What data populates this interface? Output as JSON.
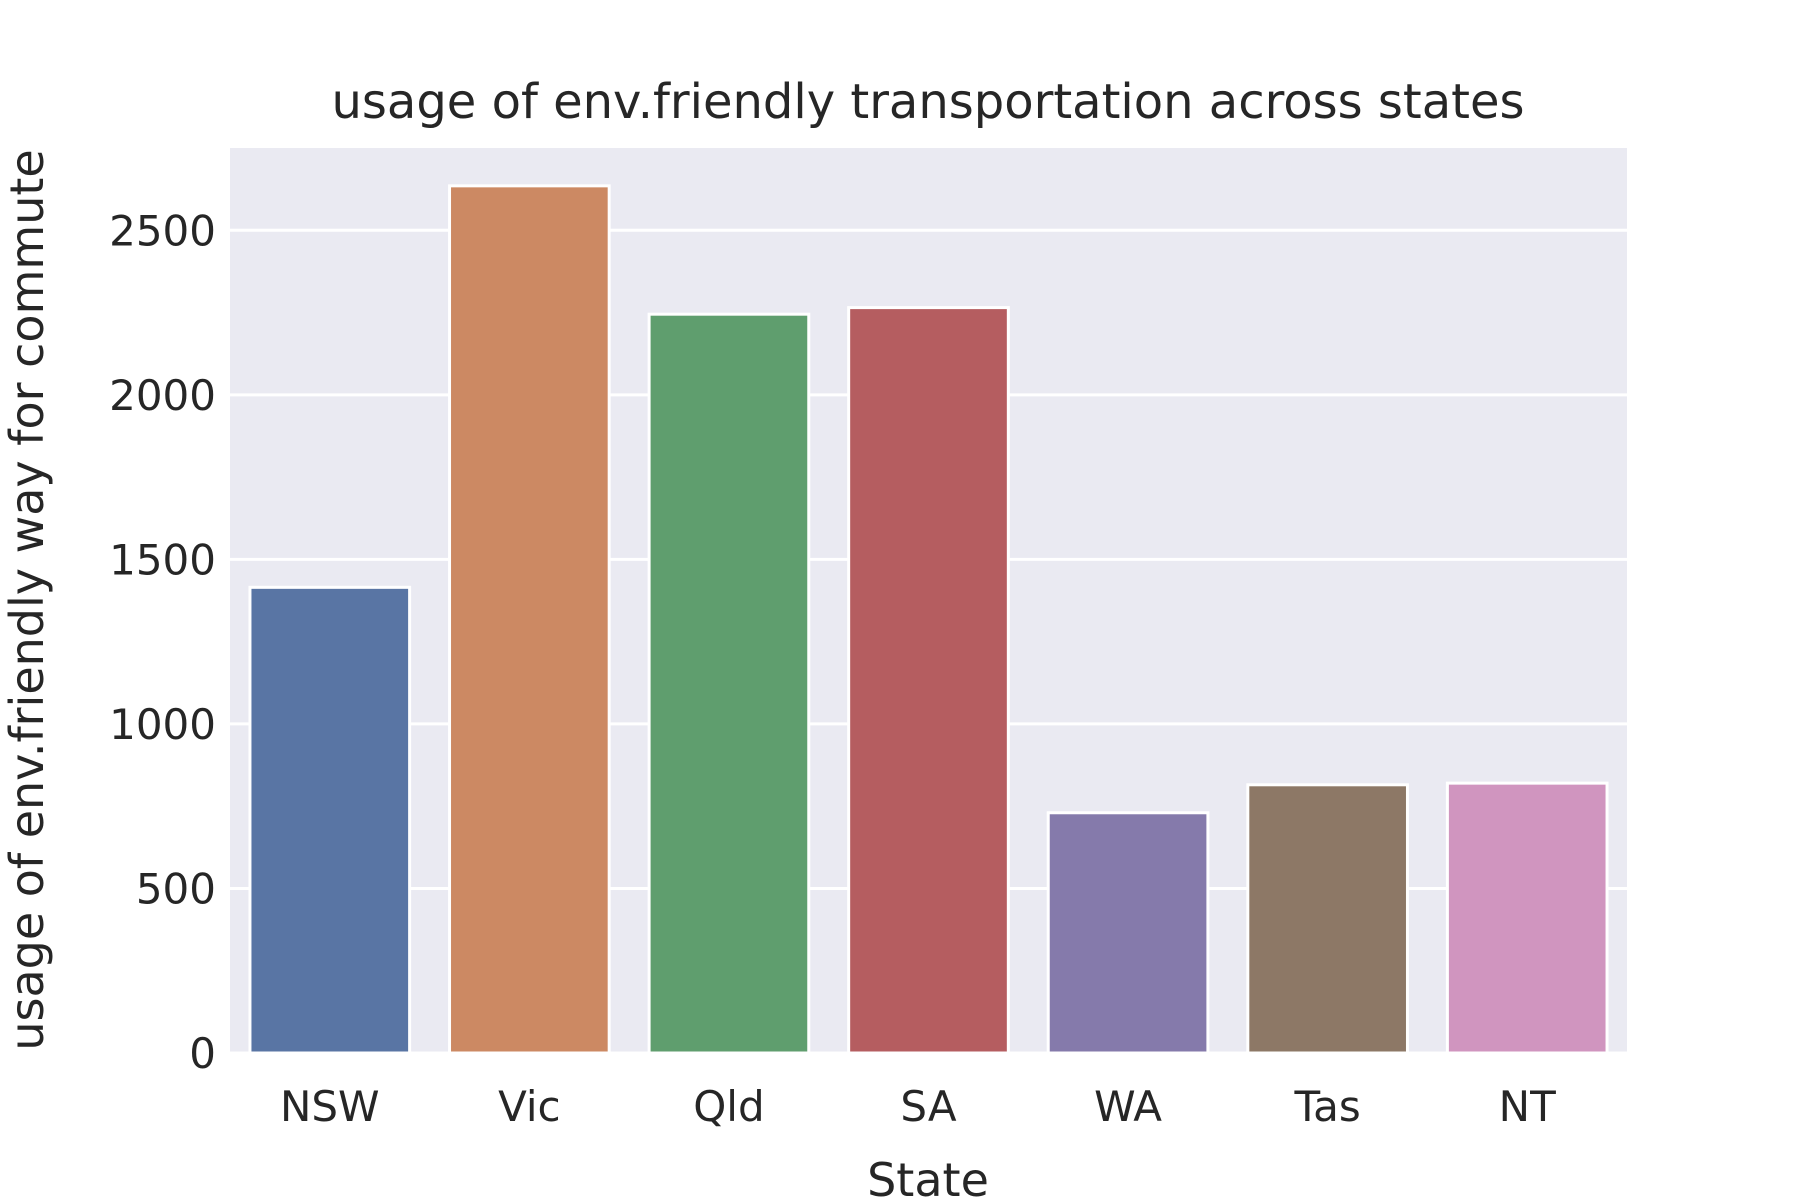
{
  "chart_data": {
    "type": "bar",
    "title": "usage of env.friendly transportation across states",
    "xlabel": "State",
    "ylabel": "usage of env.friendly way for commute",
    "categories": [
      "NSW",
      "Vic",
      "Qld",
      "SA",
      "WA",
      "Tas",
      "NT"
    ],
    "values": [
      1415,
      2635,
      2245,
      2265,
      730,
      815,
      820
    ],
    "colors": [
      "#5975a4",
      "#cc8963",
      "#5f9e6e",
      "#b55d60",
      "#857aab",
      "#8d7866",
      "#d095bf"
    ],
    "yticks": [
      0,
      500,
      1000,
      1500,
      2000,
      2500
    ],
    "ylim": [
      0,
      2750
    ],
    "grid": true,
    "background": "#eaeaf2"
  }
}
